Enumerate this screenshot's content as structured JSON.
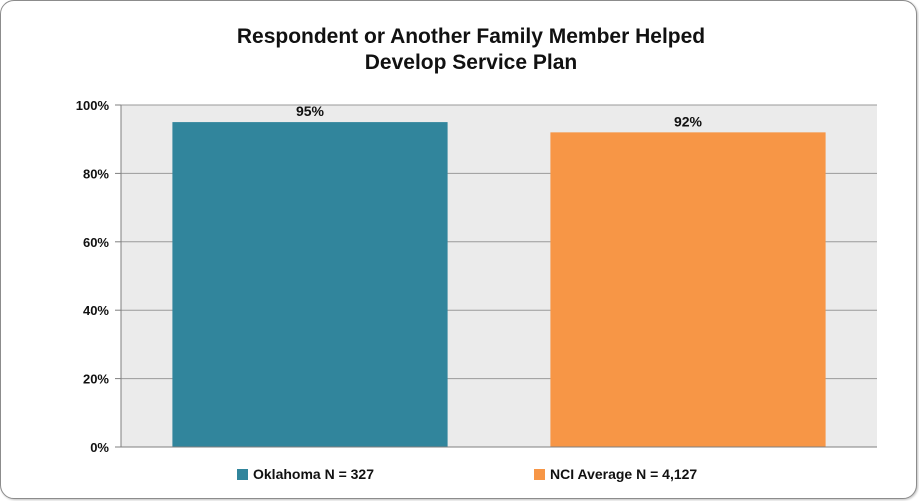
{
  "chart_data": {
    "type": "bar",
    "title": "Respondent or Another Family Member Helped\nDevelop Service Plan",
    "categories": [
      "Oklahoma N = 327",
      "NCI Average N = 4,127"
    ],
    "values": [
      95,
      92
    ],
    "data_labels": [
      "95%",
      "92%"
    ],
    "colors": [
      "#31859C",
      "#F79646"
    ],
    "ylim": [
      0,
      100
    ],
    "yticks": [
      0,
      20,
      40,
      60,
      80,
      100
    ],
    "ytick_labels": [
      "0%",
      "20%",
      "40%",
      "60%",
      "80%",
      "100%"
    ],
    "legend": [
      "Oklahoma N = 327",
      "NCI Average N = 4,127"
    ],
    "legend_position": "bottom",
    "grid": true,
    "plot_background": "#EBEBEB"
  }
}
